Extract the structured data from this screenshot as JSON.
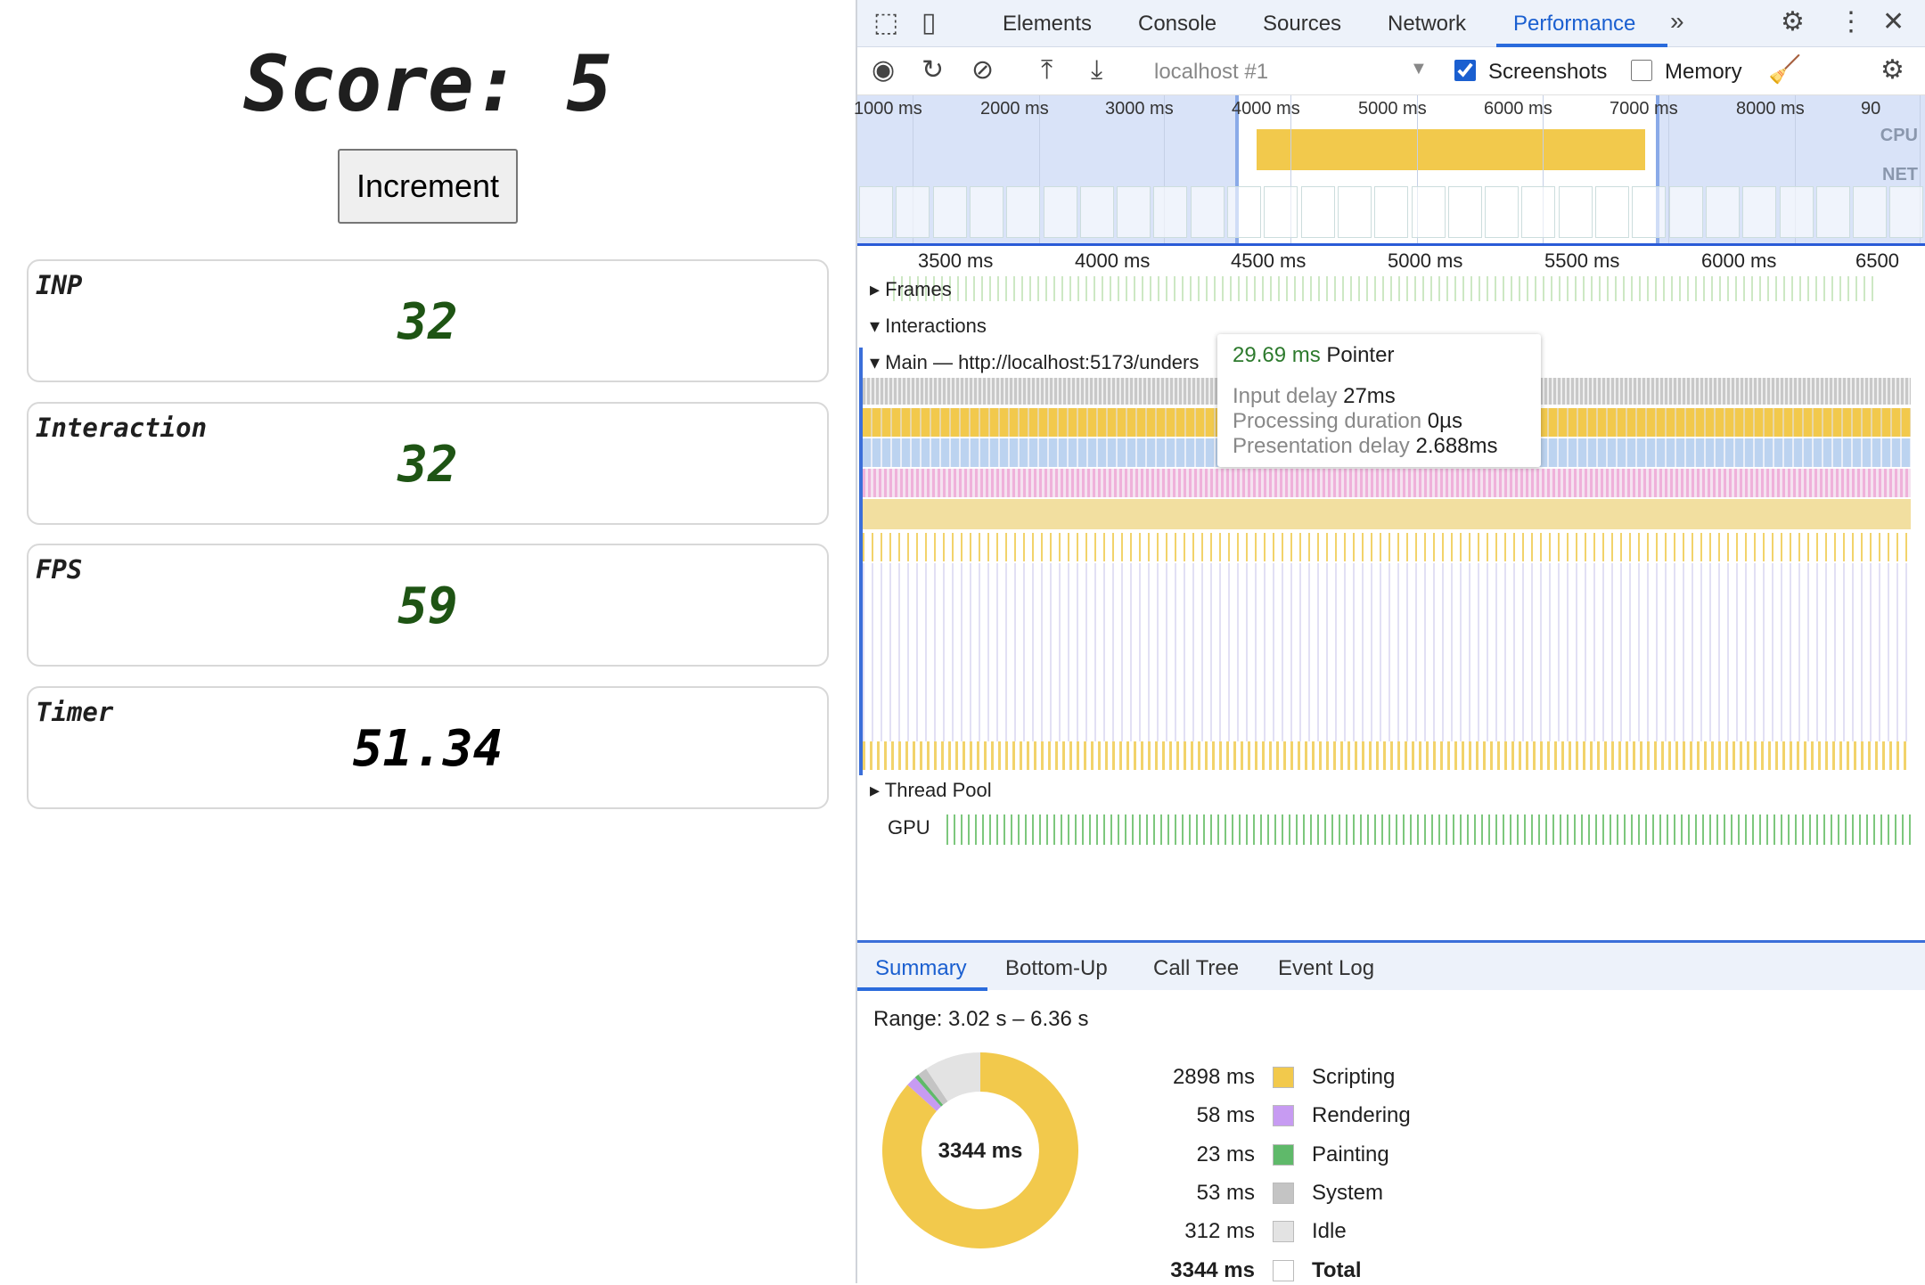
{
  "app": {
    "score_label": "Score: 5",
    "increment_label": "Increment",
    "cards": [
      {
        "label": "INP",
        "value": "32",
        "color": "#1e5414"
      },
      {
        "label": "Interaction",
        "value": "32",
        "color": "#1e5414"
      },
      {
        "label": "FPS",
        "value": "59",
        "color": "#1e5414"
      },
      {
        "label": "Timer",
        "value": "51.34",
        "color": "#000000"
      }
    ]
  },
  "devtools": {
    "tabs": [
      "Elements",
      "Console",
      "Sources",
      "Network",
      "Performance"
    ],
    "active_tab": "Performance",
    "toolbar": {
      "target": "localhost #1",
      "screenshots_label": "Screenshots",
      "screenshots_checked": true,
      "memory_label": "Memory",
      "memory_checked": false
    },
    "overview": {
      "ticks": [
        "1000 ms",
        "2000 ms",
        "3000 ms",
        "4000 ms",
        "5000 ms",
        "6000 ms",
        "7000 ms",
        "8000 ms",
        "90"
      ],
      "cpu_label": "CPU",
      "net_label": "NET"
    },
    "ruler": [
      "3500 ms",
      "4000 ms",
      "4500 ms",
      "5000 ms",
      "5500 ms",
      "6000 ms",
      "6500"
    ],
    "tracks": {
      "frames": "Frames",
      "interactions": "Interactions",
      "main": "Main — http://localhost:5173/unders",
      "thread_pool": "Thread Pool",
      "gpu": "GPU"
    },
    "tooltip": {
      "duration": "29.69 ms",
      "type": "Pointer",
      "rows": [
        {
          "label": "Input delay",
          "value": "27ms"
        },
        {
          "label": "Processing duration",
          "value": "0µs"
        },
        {
          "label": "Presentation delay",
          "value": "2.688ms"
        }
      ]
    },
    "bottom_tabs": [
      "Summary",
      "Bottom-Up",
      "Call Tree",
      "Event Log"
    ],
    "summary": {
      "range": "Range: 3.02 s – 6.36 s",
      "total_center": "3344 ms",
      "items": [
        {
          "value": "2898 ms",
          "label": "Scripting",
          "ms": 2898,
          "color": "#f2c94c"
        },
        {
          "value": "58 ms",
          "label": "Rendering",
          "ms": 58,
          "color": "#c79bf2"
        },
        {
          "value": "23 ms",
          "label": "Painting",
          "ms": 23,
          "color": "#5fb96a"
        },
        {
          "value": "53 ms",
          "label": "System",
          "ms": 53,
          "color": "#c4c4c4"
        },
        {
          "value": "312 ms",
          "label": "Idle",
          "ms": 312,
          "color": "#e3e3e3"
        },
        {
          "value": "3344 ms",
          "label": "Total",
          "ms": 3344,
          "color": "#ffffff"
        }
      ]
    }
  }
}
